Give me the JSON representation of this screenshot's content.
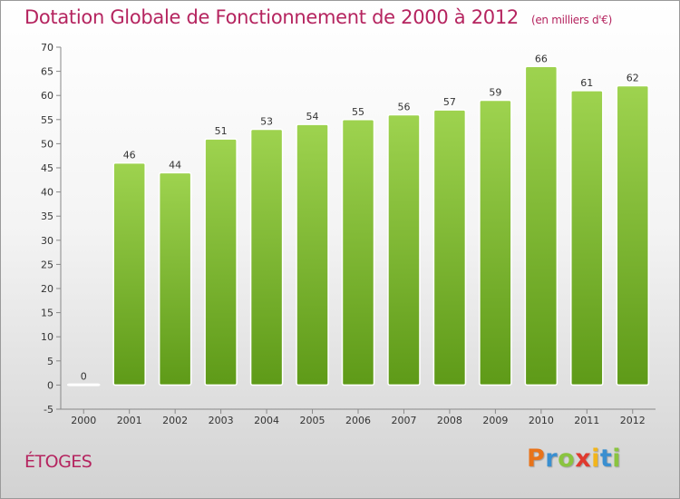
{
  "title": "Dotation Globale de Fonctionnement de 2000 à 2012",
  "unit": "(en milliers d'€)",
  "city": "ÉTOGES",
  "logo": {
    "letters": [
      "P",
      "r",
      "o",
      "x",
      "i",
      "t",
      "i"
    ],
    "colors": [
      "#e8731a",
      "#3a8fd0",
      "#8ac43f",
      "#e03a2f",
      "#f2b51b",
      "#3a8fd0",
      "#8ac43f"
    ]
  },
  "colors": {
    "title": "#b5245f",
    "bar_top": "#9ed34f",
    "bar_bottom": "#5e9a18"
  },
  "chart_data": {
    "type": "bar",
    "categories": [
      "2000",
      "2001",
      "2002",
      "2003",
      "2004",
      "2005",
      "2006",
      "2007",
      "2008",
      "2009",
      "2010",
      "2011",
      "2012"
    ],
    "values": [
      0,
      46,
      44,
      51,
      53,
      54,
      55,
      56,
      57,
      59,
      66,
      61,
      62
    ],
    "title": "Dotation Globale de Fonctionnement de 2000 à 2012",
    "xlabel": "",
    "ylabel": "",
    "ylim": [
      -5,
      70
    ],
    "yticks": [
      -5,
      0,
      5,
      10,
      15,
      20,
      25,
      30,
      35,
      40,
      45,
      50,
      55,
      60,
      65,
      70
    ],
    "grid": false,
    "legend": "none"
  }
}
